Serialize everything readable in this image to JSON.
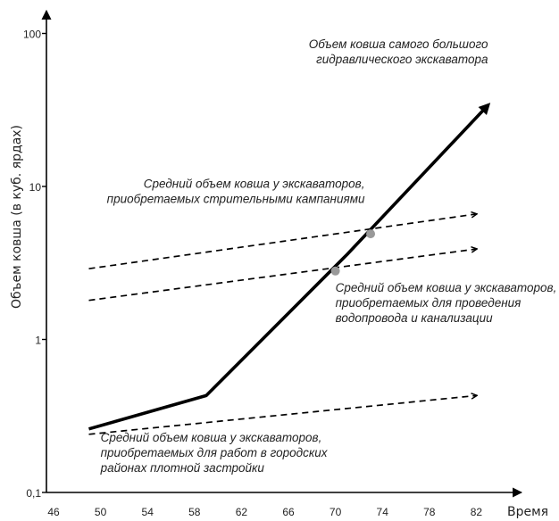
{
  "chart_data": {
    "type": "line",
    "title": "",
    "xlabel": "Время",
    "ylabel": "Объем ковша (в куб. ярдах)",
    "x_ticks": [
      "46",
      "50",
      "54",
      "58",
      "62",
      "66",
      "70",
      "74",
      "78",
      "82"
    ],
    "y_ticks": [
      "0,1",
      "1",
      "10",
      "100"
    ],
    "xlim": [
      46,
      85
    ],
    "ylim": [
      0.1,
      100
    ],
    "y_scale": "log",
    "grid": false,
    "series": [
      {
        "name": "",
        "style": "solid-arrow",
        "color": "#000000",
        "points": [
          [
            49,
            0.26
          ],
          [
            59,
            0.43
          ],
          [
            71,
            3.6
          ],
          [
            83,
            34
          ]
        ]
      },
      {
        "name": "",
        "style": "dashed-arrow",
        "color": "#000000",
        "points": [
          [
            49,
            2.9
          ],
          [
            82,
            6.6
          ]
        ]
      },
      {
        "name": "",
        "style": "dashed-arrow",
        "color": "#000000",
        "points": [
          [
            49,
            1.8
          ],
          [
            82,
            3.9
          ]
        ]
      },
      {
        "name": "",
        "style": "dashed-arrow",
        "color": "#000000",
        "points": [
          [
            49,
            0.24
          ],
          [
            82,
            0.43
          ]
        ]
      }
    ],
    "markers": [
      {
        "x": 70,
        "y": 2.8,
        "color": "#999999"
      },
      {
        "x": 73,
        "y": 4.9,
        "color": "#999999"
      }
    ],
    "annotations": [
      {
        "lines": [
          "Объем ковша самого большого",
          "гидравлического экскаватора"
        ],
        "anchor_x": 83,
        "anchor_y": 80,
        "align": "end"
      },
      {
        "lines": [
          "Средний объем ковша у экскаваторов,",
          "приобретаемых стрительными кампаниями"
        ],
        "anchor_x": 72.5,
        "anchor_y": 9.8,
        "align": "end"
      },
      {
        "lines": [
          "Средний объем ковша у экскаваторов,",
          "приобретаемых для проведения",
          "водопровода и канализации"
        ],
        "anchor_x": 70,
        "anchor_y": 2.05,
        "align": "start"
      },
      {
        "lines": [
          "Средний объем ковша у экскаваторов,",
          "приобретаемых для работ в городских",
          "районах плотной застройки"
        ],
        "anchor_x": 50,
        "anchor_y": 0.215,
        "align": "start"
      }
    ]
  }
}
